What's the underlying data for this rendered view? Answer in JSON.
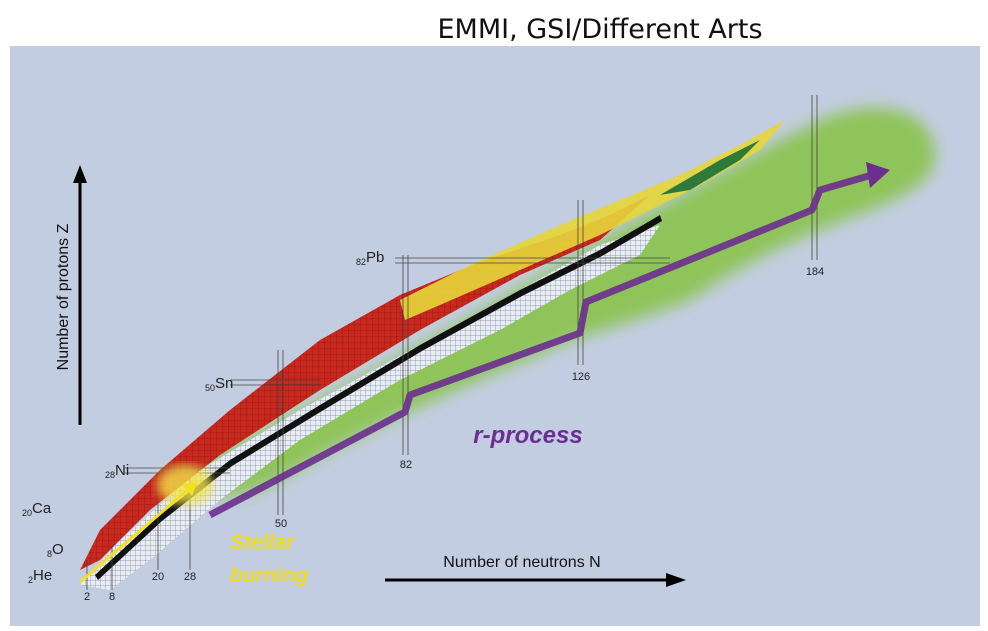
{
  "credit": "EMMI, GSI/Different Arts",
  "axes": {
    "z_label": "Number of protons Z",
    "n_label": "Number of neutrons N"
  },
  "labels": {
    "r_process": "r-process",
    "stellar_burning": [
      "Stellar",
      "burning"
    ]
  },
  "elements": [
    {
      "z": 2,
      "symbol": "He"
    },
    {
      "z": 8,
      "symbol": "O"
    },
    {
      "z": 20,
      "symbol": "Ca"
    },
    {
      "z": 28,
      "symbol": "Ni"
    },
    {
      "z": 50,
      "symbol": "Sn"
    },
    {
      "z": 82,
      "symbol": "Pb"
    }
  ],
  "neutron_magic": [
    2,
    8,
    20,
    28,
    50,
    82,
    126,
    184
  ]
}
